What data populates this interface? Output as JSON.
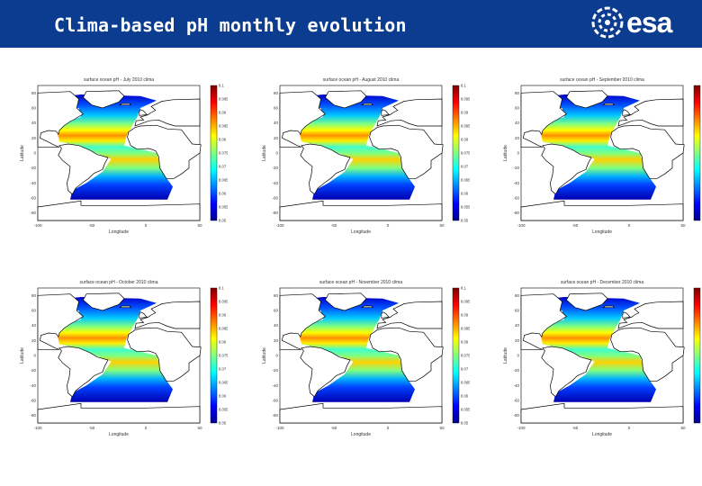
{
  "slide": {
    "title": "Clima-based pH monthly evolution",
    "logo_text": "esa"
  },
  "colors": {
    "header_background": "#0b3c8f",
    "land": "#ffffff",
    "coast": "#000000",
    "colormap": [
      "#00008f",
      "#0000ff",
      "#0080ff",
      "#00ffff",
      "#80ff80",
      "#ffff00",
      "#ff8000",
      "#ff0000",
      "#800000"
    ]
  },
  "panels": [
    {
      "title": "surface ocean pH - July 2010 clima"
    },
    {
      "title": "surface ocean pH - August 2010 clima"
    },
    {
      "title": "surface ocean pH - September 2010 clima"
    },
    {
      "title": "surface ocean pH - October 2010 clima"
    },
    {
      "title": "surface ocean pH - November 2010 clima"
    },
    {
      "title": "surface ocean pH - December 2010 clima"
    }
  ],
  "axes": {
    "xlabel": "Longitude",
    "ylabel": "Latitude",
    "xticks": [
      "-100",
      "-50",
      "0",
      "50"
    ],
    "yticks": [
      "80",
      "60",
      "40",
      "20",
      "0",
      "-20",
      "-40",
      "-60",
      "-80"
    ],
    "colorbar_ticks": [
      "8.1",
      "8.095",
      "8.09",
      "8.085",
      "8.08",
      "8.075",
      "8.07",
      "8.065",
      "8.06",
      "8.055",
      "8.05"
    ]
  }
}
